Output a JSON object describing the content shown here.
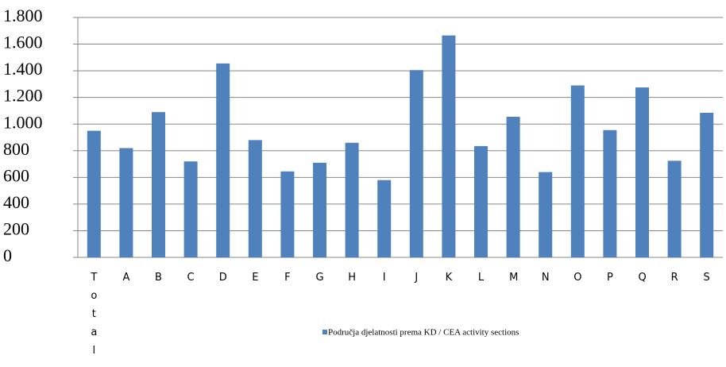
{
  "chart_data": {
    "type": "bar",
    "categories": [
      "Total",
      "A",
      "B",
      "C",
      "D",
      "E",
      "F",
      "G",
      "H",
      "I",
      "J",
      "K",
      "L",
      "M",
      "N",
      "O",
      "P",
      "Q",
      "R",
      "S"
    ],
    "series": [
      {
        "name": "Područja djelatnosti prema KD / CEA activity sections",
        "color": "#4f81bd",
        "values": [
          950,
          820,
          1090,
          720,
          1455,
          880,
          645,
          710,
          860,
          580,
          1405,
          1665,
          835,
          1055,
          640,
          1290,
          955,
          1275,
          725,
          1085
        ]
      }
    ],
    "ylim": [
      0,
      1800
    ],
    "yticks": [
      0,
      200,
      400,
      600,
      800,
      {
        "value": 1000,
        "label": "1.000"
      },
      {
        "value": 1200,
        "label": "1.200"
      },
      {
        "value": 1400,
        "label": "1.400"
      },
      {
        "value": 1600,
        "label": "1.600"
      },
      {
        "value": 1800,
        "label": "1.800"
      }
    ],
    "grid": true,
    "legend": "bottom"
  }
}
